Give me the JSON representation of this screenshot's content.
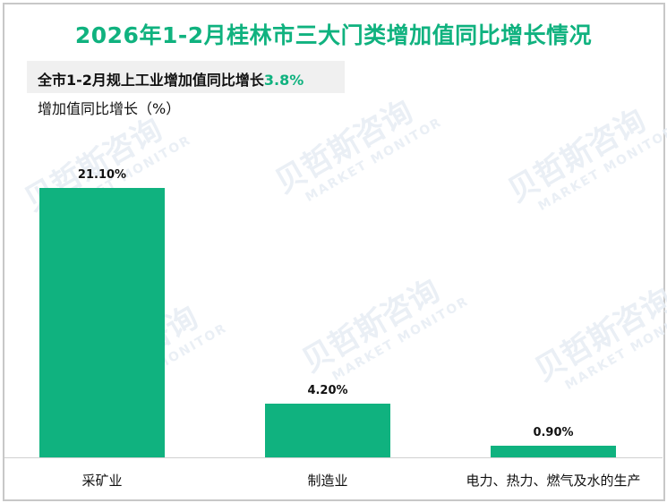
{
  "header": {
    "title": "2026年1-2月桂林市三大门类增加值同比增长情况"
  },
  "summary": {
    "text": "全市1-2月规上工业增加值同比增长",
    "value": "3.8%"
  },
  "axis": {
    "ylabel": "增加值同比增长（%）"
  },
  "watermark": {
    "cn": "贝哲斯咨询",
    "en": "MARKET MONITOR"
  },
  "colors": {
    "accent": "#10b27f",
    "bar": "#10b27f",
    "summary_bg": "#f0f0f0"
  },
  "bars": [
    {
      "category": "采矿业",
      "value": 21.1,
      "label": "21.10%"
    },
    {
      "category": "制造业",
      "value": 4.2,
      "label": "4.20%"
    },
    {
      "category": "电力、热力、燃气及水的生产",
      "value": 0.9,
      "label": "0.90%"
    }
  ],
  "chart_data": {
    "type": "bar",
    "title": "2026年1-2月桂林市三大门类增加值同比增长情况",
    "subtitle": "全市1-2月规上工业增加值同比增长3.8%",
    "categories": [
      "采矿业",
      "制造业",
      "电力、热力、燃气及水的生产"
    ],
    "values": [
      21.1,
      4.2,
      0.9
    ],
    "data_labels": [
      "21.10%",
      "4.20%",
      "0.90%"
    ],
    "xlabel": "",
    "ylabel": "增加值同比增长（%）",
    "ylim": [
      0,
      22
    ],
    "grid": false,
    "legend": null
  }
}
